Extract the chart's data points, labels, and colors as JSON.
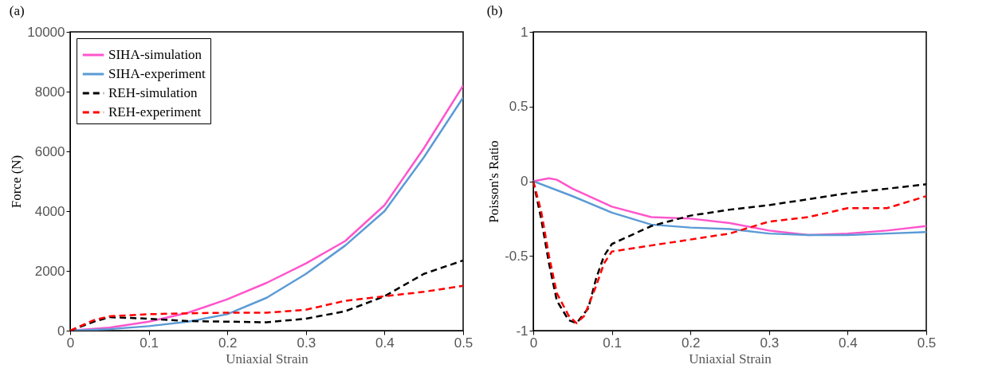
{
  "chart_data": [
    {
      "type": "line",
      "title": "(a)",
      "xlabel": "Uniaxial Strain",
      "ylabel": "Force (N)",
      "xlim": [
        0,
        0.5
      ],
      "xticks": [
        0,
        0.1,
        0.2,
        0.3,
        0.4,
        0.5
      ],
      "ylim": [
        0,
        10000
      ],
      "yticks": [
        0,
        2000,
        4000,
        6000,
        8000,
        10000
      ],
      "grid": false,
      "legend": "top left",
      "series": [
        {
          "name": "SIHA-simulation",
          "color": "#ff55cc",
          "line_style": "solid",
          "x": [
            0,
            0.05,
            0.1,
            0.15,
            0.2,
            0.25,
            0.3,
            0.35,
            0.4,
            0.45,
            0.5
          ],
          "values": [
            0,
            100,
            300,
            600,
            1050,
            1600,
            2250,
            3000,
            4200,
            6100,
            8200
          ]
        },
        {
          "name": "SIHA-experiment",
          "color": "#5b9bd5",
          "line_style": "solid",
          "x": [
            0,
            0.05,
            0.1,
            0.15,
            0.2,
            0.25,
            0.3,
            0.35,
            0.4,
            0.45,
            0.5
          ],
          "values": [
            0,
            50,
            150,
            300,
            550,
            1100,
            1900,
            2850,
            4000,
            5800,
            7800
          ]
        },
        {
          "name": "REH-simulation",
          "color": "#000000",
          "line_style": "dashed",
          "x": [
            0,
            0.03,
            0.05,
            0.1,
            0.15,
            0.2,
            0.25,
            0.3,
            0.35,
            0.4,
            0.45,
            0.5
          ],
          "values": [
            0,
            300,
            450,
            400,
            320,
            300,
            280,
            400,
            650,
            1150,
            1900,
            2350
          ]
        },
        {
          "name": "REH-experiment",
          "color": "#ff0000",
          "line_style": "dashed",
          "x": [
            0,
            0.03,
            0.05,
            0.1,
            0.15,
            0.2,
            0.25,
            0.3,
            0.35,
            0.4,
            0.45,
            0.5
          ],
          "values": [
            0,
            350,
            480,
            550,
            580,
            600,
            600,
            700,
            1000,
            1150,
            1300,
            1500
          ]
        }
      ]
    },
    {
      "type": "line",
      "title": "(b)",
      "xlabel": "Uniaxial Strain",
      "ylabel": "Poisson's Ratio",
      "xlim": [
        0,
        0.5
      ],
      "xticks": [
        0,
        0.1,
        0.2,
        0.3,
        0.4,
        0.5
      ],
      "ylim": [
        -1,
        1
      ],
      "yticks": [
        -1,
        -0.5,
        0,
        0.5,
        1
      ],
      "grid": false,
      "legend": "top left",
      "series": [
        {
          "name": "SIHA-simulation",
          "color": "#ff55cc",
          "line_style": "solid",
          "x": [
            0,
            0.02,
            0.03,
            0.05,
            0.1,
            0.15,
            0.2,
            0.25,
            0.3,
            0.35,
            0.4,
            0.45,
            0.5
          ],
          "values": [
            0,
            0.02,
            0.01,
            -0.05,
            -0.17,
            -0.24,
            -0.25,
            -0.28,
            -0.33,
            -0.36,
            -0.35,
            -0.33,
            -0.3
          ]
        },
        {
          "name": "SIHA-experiment",
          "color": "#5b9bd5",
          "line_style": "solid",
          "x": [
            0,
            0.05,
            0.1,
            0.15,
            0.2,
            0.25,
            0.3,
            0.35,
            0.4,
            0.45,
            0.5
          ],
          "values": [
            0,
            -0.1,
            -0.21,
            -0.29,
            -0.31,
            -0.32,
            -0.35,
            -0.36,
            -0.36,
            -0.35,
            -0.34
          ]
        },
        {
          "name": "REH-simulation",
          "color": "#000000",
          "line_style": "dashed",
          "x": [
            0,
            0.01,
            0.02,
            0.03,
            0.045,
            0.055,
            0.07,
            0.08,
            0.09,
            0.1,
            0.15,
            0.2,
            0.25,
            0.3,
            0.35,
            0.4,
            0.45,
            0.5
          ],
          "values": [
            0,
            -0.25,
            -0.55,
            -0.8,
            -0.93,
            -0.95,
            -0.85,
            -0.65,
            -0.5,
            -0.42,
            -0.3,
            -0.23,
            -0.19,
            -0.16,
            -0.12,
            -0.08,
            -0.05,
            -0.02
          ]
        },
        {
          "name": "REH-experiment",
          "color": "#ff0000",
          "line_style": "dashed",
          "x": [
            0,
            0.01,
            0.02,
            0.03,
            0.045,
            0.055,
            0.065,
            0.08,
            0.09,
            0.1,
            0.15,
            0.2,
            0.25,
            0.3,
            0.35,
            0.4,
            0.45,
            0.5
          ],
          "values": [
            0,
            -0.2,
            -0.5,
            -0.75,
            -0.9,
            -0.95,
            -0.9,
            -0.7,
            -0.55,
            -0.47,
            -0.43,
            -0.39,
            -0.35,
            -0.27,
            -0.24,
            -0.18,
            -0.18,
            -0.1
          ]
        }
      ]
    }
  ]
}
